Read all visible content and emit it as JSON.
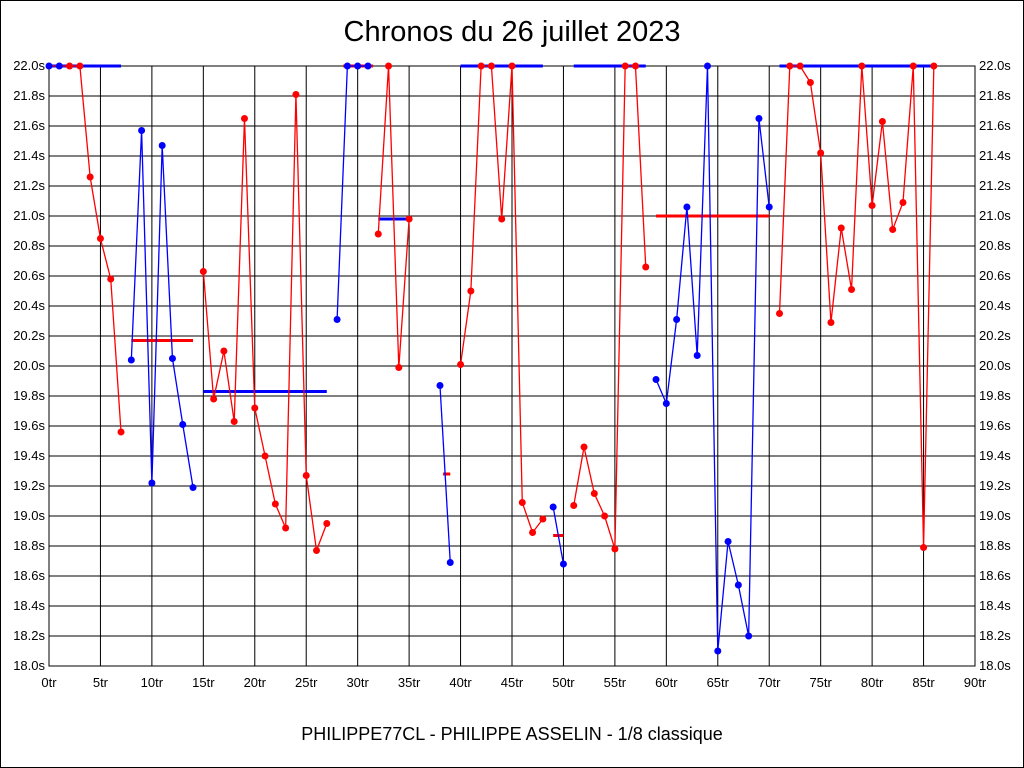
{
  "chart_data": {
    "type": "line",
    "title": "Chronos du 26 juillet 2023",
    "footer": "PHILIPPE77CL - PHILIPPE ASSELIN - 1/8 classique",
    "xlim": [
      0,
      90
    ],
    "ylim": [
      18.0,
      22.0
    ],
    "x_tick_step": 5,
    "y_tick_step": 0.2,
    "x_tick_suffix": "tr",
    "y_tick_suffix": "s",
    "grid": true,
    "colors": {
      "red": "#ff0000",
      "blue": "#0000ff"
    },
    "runs": [
      {
        "color": "red",
        "x0": 0,
        "values": [
          22.0,
          22.0,
          22.0,
          22.0,
          21.26,
          20.85,
          20.58,
          19.56
        ],
        "dot_colors": [
          "blue",
          "blue",
          "red",
          "red",
          "red",
          "red",
          "red",
          "red"
        ]
      },
      {
        "color": "blue",
        "x0": 8,
        "values": [
          20.04,
          21.57,
          19.22,
          21.47,
          20.05,
          19.61,
          19.19
        ]
      },
      {
        "color": "red",
        "x0": 15,
        "values": [
          20.63,
          19.78,
          20.1,
          19.63,
          21.65,
          19.72,
          19.4,
          19.08,
          18.92,
          21.81,
          19.27,
          18.77,
          18.95
        ]
      },
      {
        "color": "blue",
        "x0": 28,
        "values": [
          20.31,
          22.0,
          22.0,
          22.0
        ]
      },
      {
        "color": "red",
        "x0": 32,
        "values": [
          20.88,
          22.0,
          19.99,
          20.98
        ]
      },
      {
        "color": "blue",
        "x0": 38,
        "values": [
          19.87,
          18.69
        ]
      },
      {
        "color": "red",
        "x0": 40,
        "values": [
          20.01,
          20.5,
          22.0,
          22.0,
          20.98,
          22.0,
          19.09,
          18.89,
          18.98
        ]
      },
      {
        "color": "blue",
        "x0": 49,
        "values": [
          19.06,
          18.68
        ]
      },
      {
        "color": "red",
        "x0": 51,
        "values": [
          19.07,
          19.46,
          19.15,
          19.0,
          18.78,
          22.0,
          22.0,
          20.66
        ]
      },
      {
        "color": "blue",
        "x0": 59,
        "values": [
          19.91,
          19.75,
          20.31,
          21.06,
          20.07,
          22.0,
          18.1,
          18.83,
          18.54,
          18.2,
          21.65,
          21.06
        ]
      },
      {
        "color": "red",
        "x0": 71,
        "values": [
          20.35,
          22.0,
          22.0,
          21.89,
          21.42,
          20.29,
          20.92,
          20.51,
          22.0,
          21.07,
          21.63,
          20.91,
          21.09,
          22.0,
          18.79,
          22.0
        ]
      }
    ],
    "averages": [
      {
        "color": "blue",
        "from": 0,
        "to": 7,
        "value": 22.0
      },
      {
        "color": "red",
        "from": 8,
        "to": 14,
        "value": 20.17
      },
      {
        "color": "blue",
        "from": 15,
        "to": 27,
        "value": 19.83
      },
      {
        "color": "red",
        "from": 28.6,
        "to": 31.5,
        "value": 22.0
      },
      {
        "color": "blue",
        "from": 32,
        "to": 35,
        "value": 20.98
      },
      {
        "color": "red",
        "from": 38.3,
        "to": 39,
        "value": 19.28
      },
      {
        "color": "blue",
        "from": 40,
        "to": 48,
        "value": 22.0
      },
      {
        "color": "red",
        "from": 49,
        "to": 50,
        "value": 18.87
      },
      {
        "color": "blue",
        "from": 51,
        "to": 58,
        "value": 22.0
      },
      {
        "color": "red",
        "from": 59,
        "to": 70,
        "value": 21.0
      },
      {
        "color": "blue",
        "from": 71,
        "to": 86,
        "value": 22.0
      }
    ]
  }
}
